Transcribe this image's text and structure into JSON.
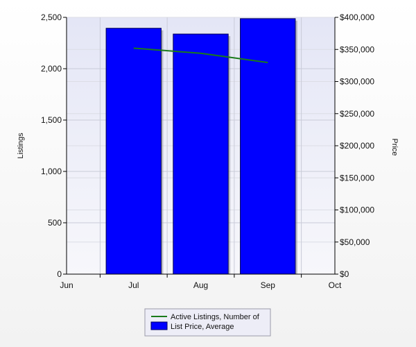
{
  "chart_data": {
    "type": "bar",
    "categories": [
      "Jun",
      "Jul",
      "Aug",
      "Sep",
      "Oct"
    ],
    "series": [
      {
        "name": "Active Listings, Number of",
        "kind": "line",
        "axis": "left",
        "color": "#1a7a1a",
        "values": [
          null,
          2200,
          2150,
          2060,
          null
        ]
      },
      {
        "name": "List Price, Average",
        "kind": "bar",
        "axis": "right",
        "color": "#0000ff",
        "values": [
          null,
          383000,
          374000,
          398000,
          null
        ]
      }
    ],
    "ylabel": "Listings",
    "ylabel_right": "Price",
    "ylim": [
      0,
      2500
    ],
    "ylim_right": [
      0,
      400000
    ],
    "yticks": [
      "0",
      "500",
      "1,000",
      "1,500",
      "2,000",
      "2,500"
    ],
    "yticks_right": [
      "$0",
      "$50,000",
      "$100,000",
      "$150,000",
      "$200,000",
      "$250,000",
      "$300,000",
      "$350,000",
      "$400,000"
    ],
    "grid": true,
    "legend_position": "bottom-center",
    "plot_background": "#e6e8f7"
  }
}
